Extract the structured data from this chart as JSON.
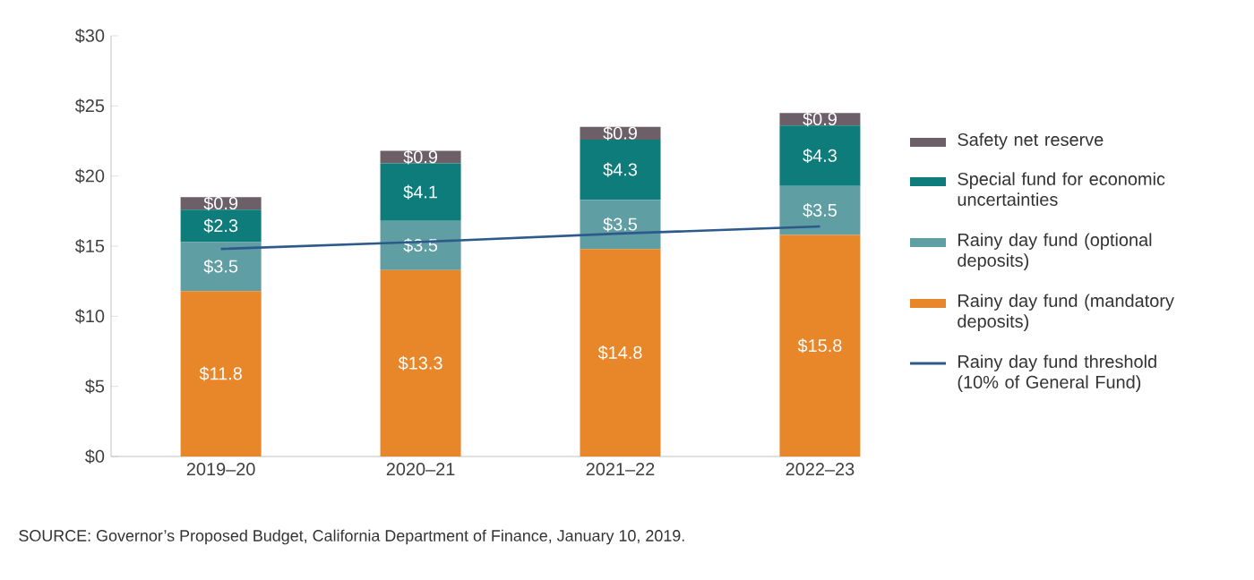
{
  "chart_data": {
    "type": "bar",
    "stacked": true,
    "categories": [
      "2019–20",
      "2020–21",
      "2021–22",
      "2022–23"
    ],
    "series": [
      {
        "name": "Rainy day fund (mandatory deposits)",
        "color": "#e8862a",
        "values": [
          11.8,
          13.3,
          14.8,
          15.8
        ],
        "value_labels": [
          "$11.8",
          "$13.3",
          "$14.8",
          "$15.8"
        ]
      },
      {
        "name": "Rainy day fund (optional deposits)",
        "color": "#5f9ea3",
        "values": [
          3.5,
          3.5,
          3.5,
          3.5
        ],
        "value_labels": [
          "$3.5",
          "$3.5",
          "$3.5",
          "$3.5"
        ]
      },
      {
        "name": "Special fund for economic uncertainties",
        "color": "#0e7c7b",
        "values": [
          2.3,
          4.1,
          4.3,
          4.3
        ],
        "value_labels": [
          "$2.3",
          "$4.1",
          "$4.3",
          "$4.3"
        ]
      },
      {
        "name": "Safety net reserve",
        "color": "#6d5f68",
        "values": [
          0.9,
          0.9,
          0.9,
          0.9
        ],
        "value_labels": [
          "$0.9",
          "$0.9",
          "$0.9",
          "$0.9"
        ]
      },
      {
        "name": "Rainy day fund threshold (10% of General Fund)",
        "type": "line",
        "color": "#2d5a8a",
        "values": [
          14.8,
          15.3,
          15.9,
          16.4
        ]
      }
    ],
    "ylim": [
      0,
      30
    ],
    "yticks": [
      {
        "value": 0,
        "label": "$0"
      },
      {
        "value": 5,
        "label": "$5"
      },
      {
        "value": 10,
        "label": "$10"
      },
      {
        "value": 15,
        "label": "$15"
      },
      {
        "value": 20,
        "label": "$20"
      },
      {
        "value": 25,
        "label": "$25"
      },
      {
        "value": 30,
        "label": "$30"
      }
    ],
    "legend": "right",
    "grid": false,
    "annotations": [
      "SOURCE: Governor’s Proposed Budget, California Department of Finance, January 10, 2019."
    ]
  }
}
